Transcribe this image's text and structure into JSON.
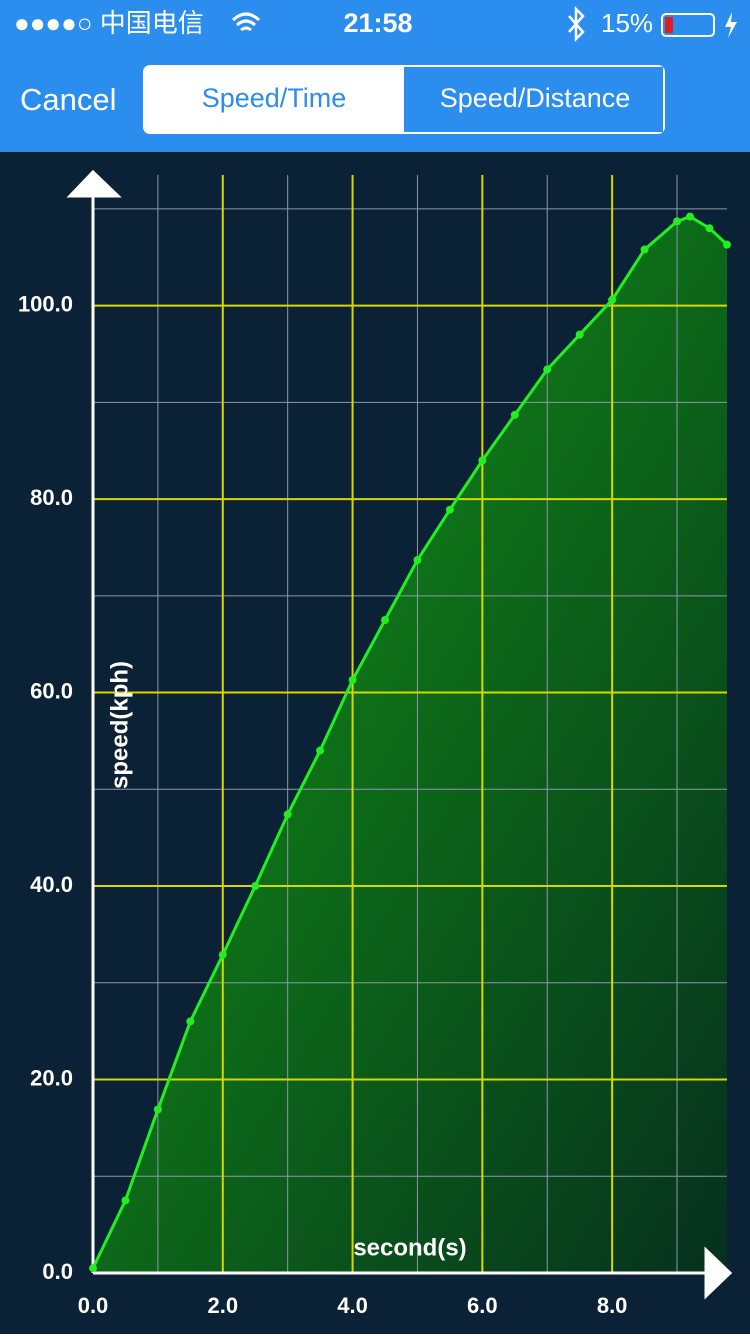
{
  "status_bar": {
    "carrier": "●●●●○ 中国电信",
    "time": "21:58",
    "battery": "15%"
  },
  "nav_bar": {
    "cancel": "Cancel",
    "segments": [
      "Speed/Time",
      "Speed/Distance"
    ]
  },
  "chart_data": {
    "type": "area",
    "x_label": "second(s)",
    "y_label": "speed(kph)",
    "xlim": [
      0,
      9.77
    ],
    "ylim": [
      0,
      113.5
    ],
    "xticks": [
      {
        "value": 0,
        "label": "0.0"
      },
      {
        "value": 2,
        "label": "2.0"
      },
      {
        "value": 4,
        "label": "4.0"
      },
      {
        "value": 6,
        "label": "6.0"
      },
      {
        "value": 8,
        "label": "8.0"
      }
    ],
    "yticks": [
      {
        "value": 0,
        "label": "0.0"
      },
      {
        "value": 20,
        "label": "20.0"
      },
      {
        "value": 40,
        "label": "40.0"
      },
      {
        "value": 60,
        "label": "60.0"
      },
      {
        "value": 80,
        "label": "80.0"
      },
      {
        "value": 100,
        "label": "100.0"
      }
    ],
    "x_minor_grid": [
      1,
      3,
      5,
      7,
      9
    ],
    "y_minor_grid": [
      10,
      30,
      50,
      70,
      90,
      110
    ],
    "grid": true,
    "major_grid_color": "#d8d800",
    "minor_grid_color": "#8a9aa8",
    "x": [
      0,
      0.5,
      1.0,
      1.5,
      2.0,
      2.5,
      3.0,
      3.5,
      4.0,
      4.5,
      5.0,
      5.5,
      6.0,
      6.5,
      7.0,
      7.5,
      8.0,
      8.5,
      9.0,
      9.2,
      9.5,
      9.77
    ],
    "series": [
      {
        "color": "#22ee22",
        "values": [
          0.5,
          7.5,
          16.9,
          26,
          32.9,
          40,
          47.4,
          54,
          61.3,
          67.5,
          73.7,
          78.9,
          84,
          88.7,
          93.4,
          97,
          100.6,
          105.8,
          108.7,
          109.2,
          108,
          106.3
        ]
      }
    ]
  }
}
